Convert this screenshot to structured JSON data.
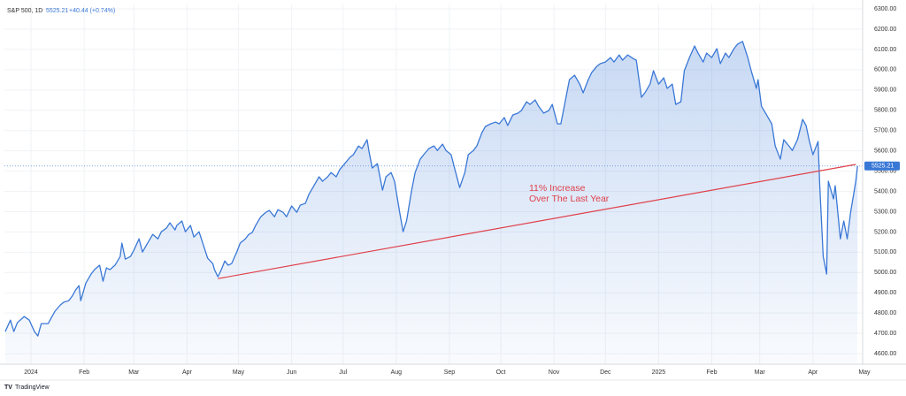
{
  "chart_data": {
    "type": "line",
    "title": "S&P 500, 1D",
    "change_label": "+40.44 (+0.74%)",
    "watermark": "TradingView",
    "x": [
      -15,
      -12,
      -10,
      -8,
      -4,
      -1,
      2,
      4,
      6,
      10,
      14,
      17,
      19,
      22,
      24,
      26,
      28,
      29,
      32,
      35,
      37,
      40,
      42,
      44,
      46,
      49,
      52,
      53,
      55,
      58,
      60,
      63,
      65,
      68,
      71,
      74,
      76,
      79,
      81,
      84,
      85,
      88,
      90,
      93,
      95,
      98,
      101,
      103,
      106,
      107,
      109,
      111,
      113,
      115,
      117,
      120,
      122,
      125,
      127,
      129,
      131,
      134,
      137,
      139,
      142,
      144,
      147,
      149,
      152,
      155,
      157,
      160,
      162,
      165,
      168,
      170,
      173,
      175,
      178,
      180,
      183,
      186,
      188,
      191,
      193,
      196,
      197,
      199,
      202,
      205,
      207,
      210,
      212,
      215,
      217,
      219,
      222,
      224,
      227,
      229,
      232,
      235,
      237,
      240,
      242,
      245,
      247,
      250,
      253,
      255,
      258,
      260,
      263,
      265,
      268,
      271,
      273,
      276,
      278,
      281,
      284,
      286,
      289,
      291,
      294,
      296,
      299,
      302,
      304,
      307,
      309,
      312,
      314,
      317,
      320,
      322,
      325,
      327,
      330,
      332,
      335,
      338,
      340,
      343,
      345,
      348,
      351,
      353,
      356,
      358,
      361,
      363,
      366,
      369,
      371,
      374,
      376,
      379,
      381,
      384,
      387,
      389,
      392,
      394,
      397,
      400,
      402,
      405,
      407,
      410,
      412,
      415,
      418,
      420,
      423,
      424,
      426,
      429,
      432,
      434,
      437,
      439,
      442,
      444,
      447,
      450,
      452,
      454,
      456,
      459,
      460,
      462,
      464,
      465,
      468,
      469,
      472,
      474,
      476,
      478,
      481,
      482
    ],
    "series": [
      {
        "name": "S&P 500, 1D",
        "color": "#3a78d6",
        "values": [
          4709,
          4765,
          4709,
          4752,
          4783,
          4765,
          4709,
          4687,
          4748,
          4748,
          4809,
          4839,
          4853,
          4861,
          4883,
          4914,
          4935,
          4861,
          4948,
          4992,
          5014,
          5036,
          4957,
          5023,
          5014,
          5036,
          5079,
          5145,
          5066,
          5079,
          5110,
          5166,
          5101,
          5145,
          5188,
          5166,
          5201,
          5219,
          5245,
          5210,
          5232,
          5254,
          5201,
          5232,
          5175,
          5201,
          5123,
          5071,
          5044,
          5014,
          4979,
          5014,
          5057,
          5036,
          5044,
          5101,
          5145,
          5166,
          5188,
          5197,
          5232,
          5275,
          5297,
          5306,
          5275,
          5310,
          5297,
          5275,
          5328,
          5297,
          5332,
          5341,
          5384,
          5428,
          5472,
          5450,
          5472,
          5493,
          5472,
          5507,
          5537,
          5568,
          5581,
          5624,
          5611,
          5655,
          5602,
          5515,
          5537,
          5406,
          5472,
          5493,
          5450,
          5297,
          5201,
          5254,
          5406,
          5493,
          5559,
          5581,
          5611,
          5624,
          5602,
          5633,
          5602,
          5581,
          5515,
          5419,
          5493,
          5581,
          5602,
          5624,
          5690,
          5720,
          5733,
          5742,
          5733,
          5764,
          5725,
          5777,
          5786,
          5799,
          5842,
          5829,
          5851,
          5820,
          5786,
          5799,
          5829,
          5733,
          5733,
          5864,
          5951,
          5973,
          5929,
          5886,
          5951,
          5986,
          6017,
          6030,
          6038,
          6060,
          6038,
          6073,
          6047,
          6073,
          6056,
          6047,
          5864,
          5886,
          5929,
          5995,
          5929,
          5960,
          5908,
          5929,
          5829,
          5842,
          5995,
          6060,
          6117,
          6082,
          6038,
          6082,
          6060,
          6104,
          6030,
          6082,
          6060,
          6104,
          6126,
          6139,
          6060,
          5995,
          5908,
          5951,
          5820,
          5777,
          5733,
          5624,
          5559,
          5655,
          5624,
          5602,
          5655,
          5755,
          5725,
          5646,
          5581,
          5646,
          5428,
          5079,
          4992,
          5450,
          5363,
          5428,
          5166,
          5254,
          5166,
          5297,
          5450,
          5525.21
        ]
      }
    ],
    "trend_line": {
      "x": [
        109,
        481
      ],
      "values": [
        4970,
        5533
      ],
      "color": "#e0404a"
    },
    "annotation": {
      "lines": [
        "11% Increase",
        "Over The Last Year"
      ],
      "color": "#e0404a"
    },
    "xlim": [
      -15.5,
      485
    ],
    "ylim": [
      4548,
      6322
    ],
    "xticks": [
      {
        "value": 0,
        "label": "2024"
      },
      {
        "value": 31,
        "label": "Feb"
      },
      {
        "value": 60,
        "label": "Mar"
      },
      {
        "value": 91,
        "label": "Apr"
      },
      {
        "value": 121,
        "label": "May"
      },
      {
        "value": 152,
        "label": "Jun"
      },
      {
        "value": 182,
        "label": "Jul"
      },
      {
        "value": 213,
        "label": "Aug"
      },
      {
        "value": 244,
        "label": "Sep"
      },
      {
        "value": 274,
        "label": "Oct"
      },
      {
        "value": 305,
        "label": "Nov"
      },
      {
        "value": 335,
        "label": "Dec"
      },
      {
        "value": 366,
        "label": "2025"
      },
      {
        "value": 397,
        "label": "Feb"
      },
      {
        "value": 425,
        "label": "Mar"
      },
      {
        "value": 456,
        "label": "Apr"
      },
      {
        "value": 486,
        "label": "May"
      }
    ],
    "yticks": [
      {
        "value": 4600,
        "label": "4600.00"
      },
      {
        "value": 4700,
        "label": "4700.00"
      },
      {
        "value": 4800,
        "label": "4800.00"
      },
      {
        "value": 4900,
        "label": "4900.00"
      },
      {
        "value": 5000,
        "label": "5000.00"
      },
      {
        "value": 5100,
        "label": "5100.00"
      },
      {
        "value": 5200,
        "label": "5200.00"
      },
      {
        "value": 5300,
        "label": "5300.00"
      },
      {
        "value": 5400,
        "label": "5400.00"
      },
      {
        "value": 5500,
        "label": "5500.00"
      },
      {
        "value": 5600,
        "label": "5600.00"
      },
      {
        "value": 5700,
        "label": "5700.00"
      },
      {
        "value": 5800,
        "label": "5800.00"
      },
      {
        "value": 5900,
        "label": "5900.00"
      },
      {
        "value": 6000,
        "label": "6000.00"
      },
      {
        "value": 6100,
        "label": "6100.00"
      },
      {
        "value": 6200,
        "label": "6200.00"
      },
      {
        "value": 6300,
        "label": "6300.00"
      }
    ],
    "grid": true
  }
}
